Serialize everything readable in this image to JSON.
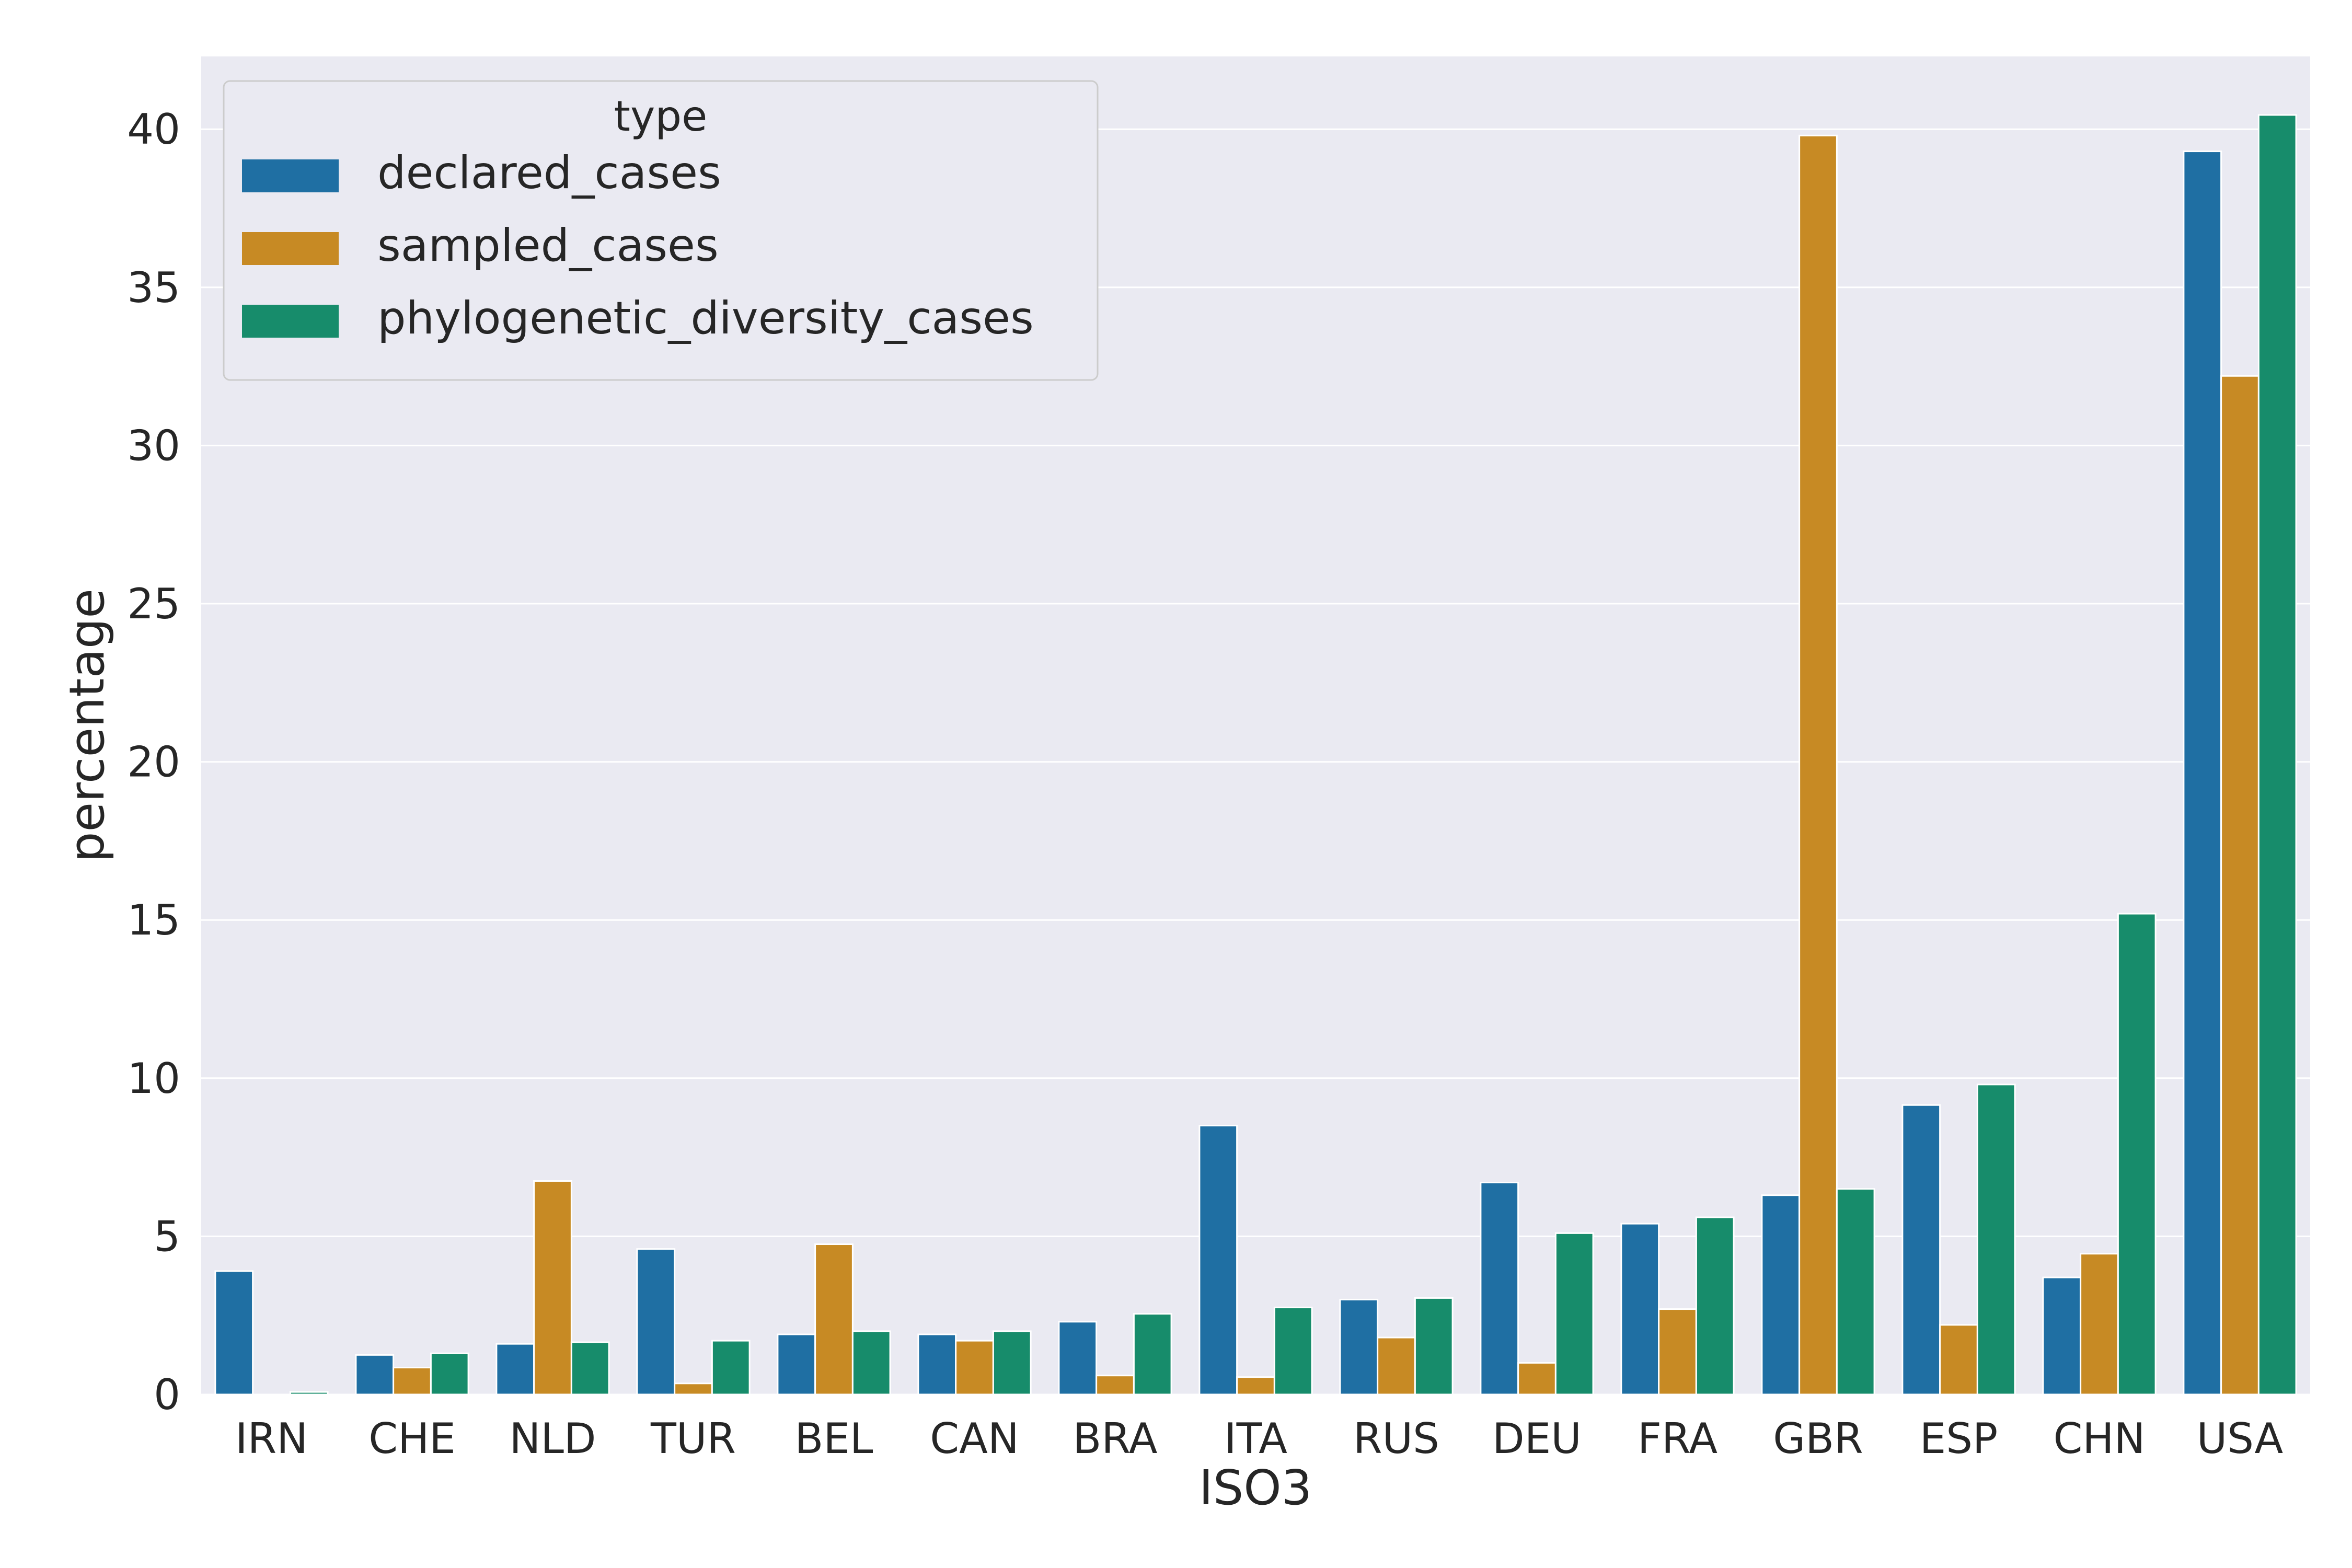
{
  "chart_data": {
    "type": "bar",
    "xlabel": "ISO3",
    "ylabel": "percentage",
    "ylim": [
      0,
      42.3
    ],
    "yticks": [
      "0",
      "5",
      "10",
      "15",
      "20",
      "25",
      "30",
      "35",
      "40"
    ],
    "grid": true,
    "legend": {
      "title": "type",
      "placement": "top-left"
    },
    "categories": [
      "IRN",
      "CHE",
      "NLD",
      "TUR",
      "BEL",
      "CAN",
      "BRA",
      "ITA",
      "RUS",
      "DEU",
      "FRA",
      "GBR",
      "ESP",
      "CHN",
      "USA"
    ],
    "series": [
      {
        "name": "declared_cases",
        "color": "#1f6fa3",
        "values": [
          3.9,
          1.25,
          1.6,
          4.6,
          1.9,
          1.9,
          2.3,
          8.5,
          3.0,
          6.7,
          5.4,
          6.3,
          9.15,
          3.7,
          39.3
        ]
      },
      {
        "name": "sampled_cases",
        "color": "#c78a24",
        "values": [
          0.0,
          0.85,
          6.75,
          0.35,
          4.75,
          1.7,
          0.6,
          0.55,
          1.8,
          1.0,
          2.7,
          39.8,
          2.2,
          4.45,
          32.2
        ]
      },
      {
        "name": "phylogenetic_diversity_cases",
        "color": "#178c6b",
        "values": [
          0.08,
          1.3,
          1.65,
          1.7,
          2.0,
          2.0,
          2.55,
          2.75,
          3.05,
          5.1,
          5.6,
          6.5,
          9.8,
          15.2,
          40.45
        ]
      }
    ]
  }
}
